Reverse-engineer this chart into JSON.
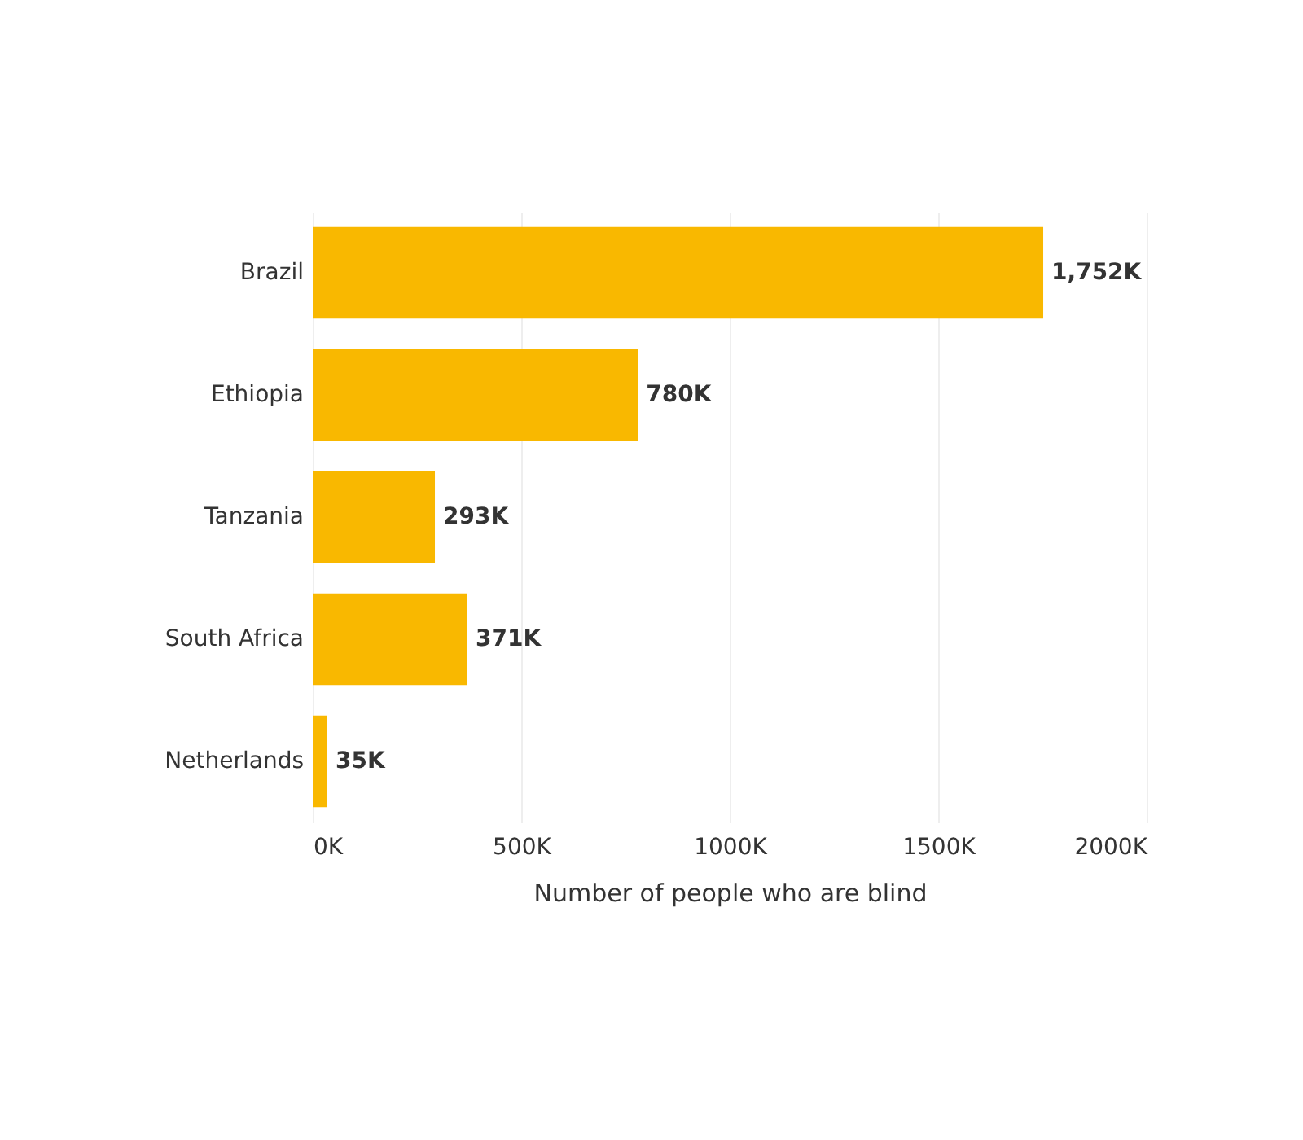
{
  "chart_data": {
    "type": "bar",
    "orientation": "horizontal",
    "categories": [
      "Brazil",
      "Ethiopia",
      "Tanzania",
      "South Africa",
      "Netherlands"
    ],
    "values": [
      1752,
      780,
      293,
      371,
      35
    ],
    "value_labels": [
      "1,752K",
      "780K",
      "293K",
      "371K",
      "35K"
    ],
    "color": "#f9b800",
    "xlabel": "Number of people who are blind",
    "xlim": [
      0,
      2000
    ],
    "xticks": [
      {
        "value": 0,
        "label": "0K"
      },
      {
        "value": 500,
        "label": "500K"
      },
      {
        "value": 1000,
        "label": "1000K"
      },
      {
        "value": 1500,
        "label": "1500K"
      },
      {
        "value": 2000,
        "label": "2000K"
      }
    ],
    "grid": "x"
  }
}
